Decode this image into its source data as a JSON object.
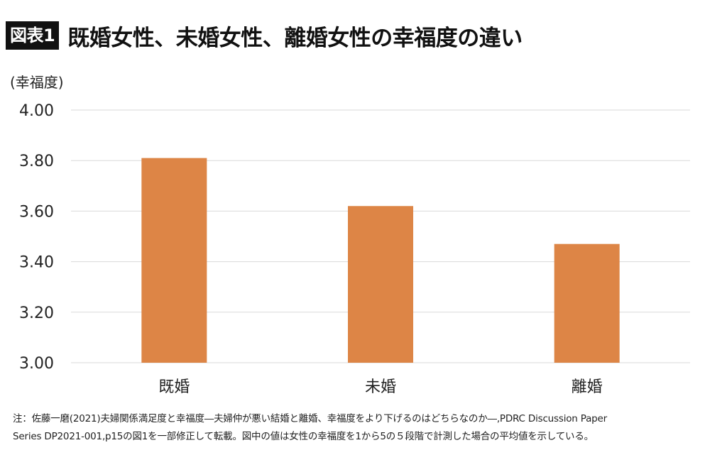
{
  "header": {
    "badge": "図表1",
    "title": "既婚女性、未婚女性、離婚女性の幸福度の違い"
  },
  "chart_data": {
    "type": "bar",
    "title": "既婚女性、未婚女性、離婚女性の幸福度の違い",
    "ylabel": "(幸福度)",
    "xlabel": "",
    "categories": [
      "既婚",
      "未婚",
      "離婚"
    ],
    "values": [
      3.81,
      3.62,
      3.47
    ],
    "ylim": [
      3.0,
      4.0
    ],
    "yticks": [
      "3.00",
      "3.20",
      "3.40",
      "3.60",
      "3.80",
      "4.00"
    ],
    "grid": true,
    "legend": "none",
    "bar_color": "#DD8546",
    "grid_color": "#D9D9D9"
  },
  "notes": {
    "line1": "注：佐藤一磨(2021)夫婦関係満足度と幸福度―夫婦仲が悪い結婚と離婚、幸福度をより下げるのはどちらなのか―,PDRC Discussion Paper",
    "line2": "Series DP2021-001,p15の図1を一部修正して転載。図中の値は女性の幸福度を1から5の５段階で計測した場合の平均値を示している。"
  }
}
